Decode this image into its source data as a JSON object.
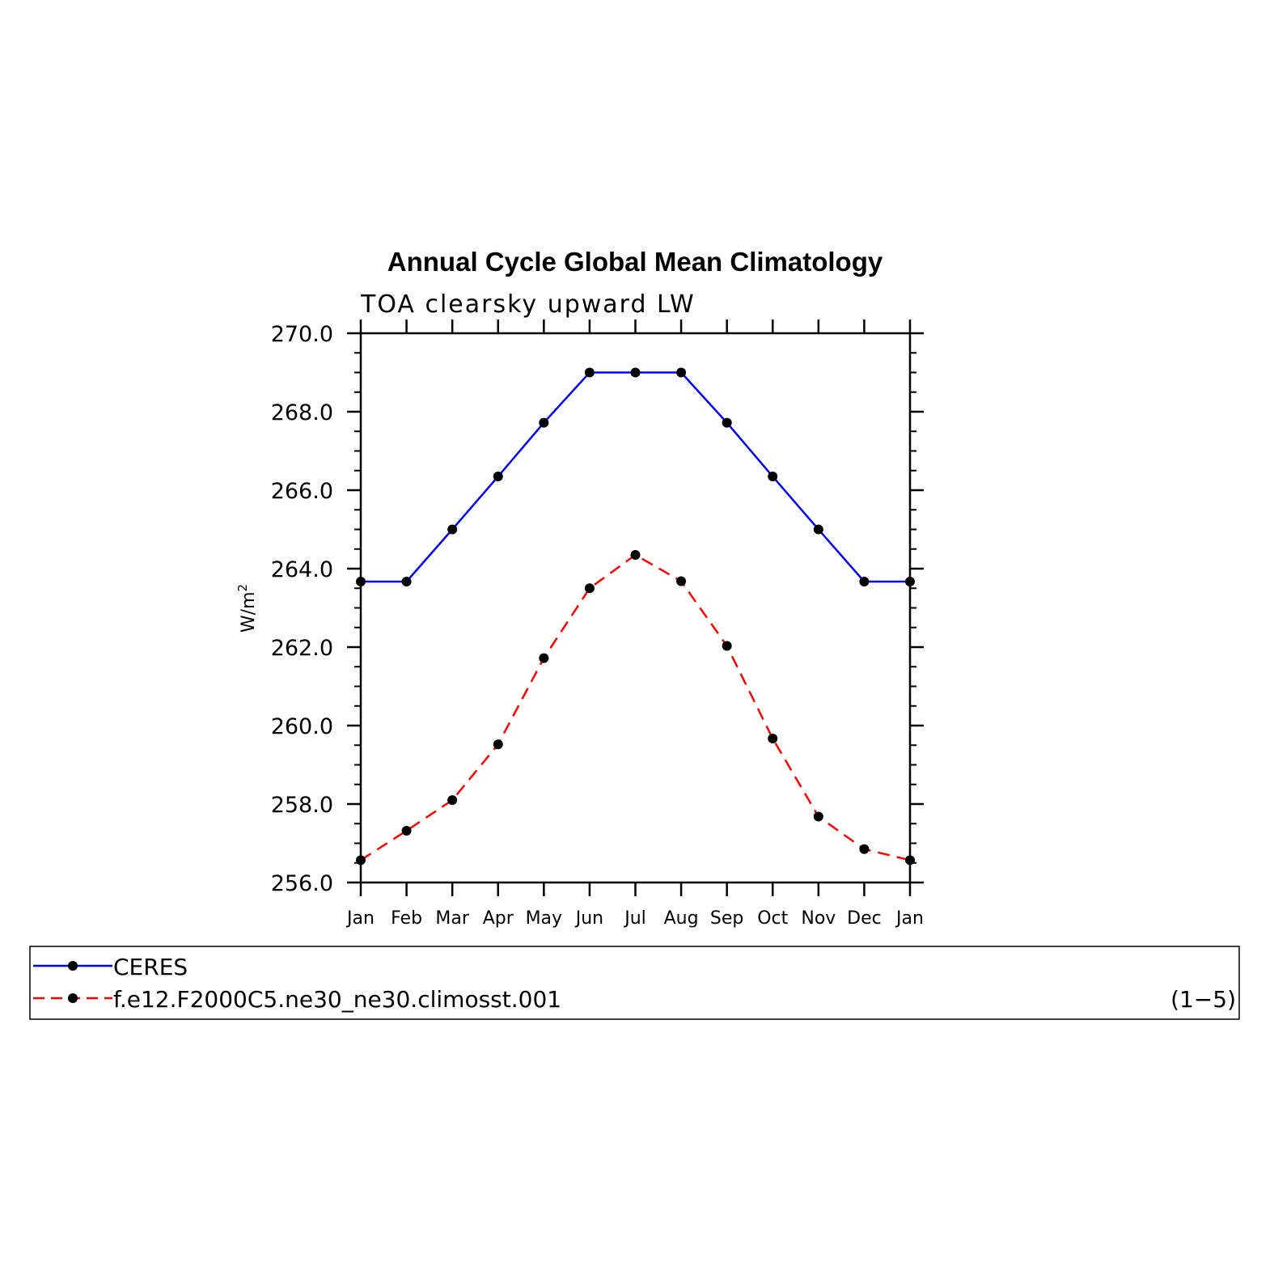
{
  "chart_data": {
    "type": "line",
    "title": "Annual Cycle Global Mean Climatology",
    "subtitle": "TOA clearsky upward LW",
    "xlabel": "",
    "ylabel": "W/m",
    "ylabel_superscript": "2",
    "categories": [
      "Jan",
      "Feb",
      "Mar",
      "Apr",
      "May",
      "Jun",
      "Jul",
      "Aug",
      "Sep",
      "Oct",
      "Nov",
      "Dec",
      "Jan"
    ],
    "ylim": [
      256.0,
      270.0
    ],
    "yticks": [
      "256.0",
      "258.0",
      "260.0",
      "262.0",
      "264.0",
      "266.0",
      "268.0",
      "270.0"
    ],
    "grid": false,
    "legend_position": "bottom",
    "series": [
      {
        "name": "CERES",
        "color": "#0000ff",
        "line_style": "solid",
        "marker": "filled-circle",
        "values": [
          263.67,
          263.67,
          265.0,
          266.35,
          267.72,
          269.0,
          269.0,
          269.0,
          267.72,
          266.35,
          265.0,
          263.67,
          263.67
        ]
      },
      {
        "name": "f.e12.F2000C5.ne30_ne30.climosst.001",
        "color": "#ff0000",
        "line_style": "dashed",
        "marker": "filled-circle",
        "values": [
          256.57,
          257.32,
          258.1,
          259.52,
          261.72,
          263.5,
          264.35,
          263.68,
          262.03,
          259.67,
          257.68,
          256.85,
          256.57
        ]
      }
    ],
    "legend_note": "(1−5)"
  }
}
